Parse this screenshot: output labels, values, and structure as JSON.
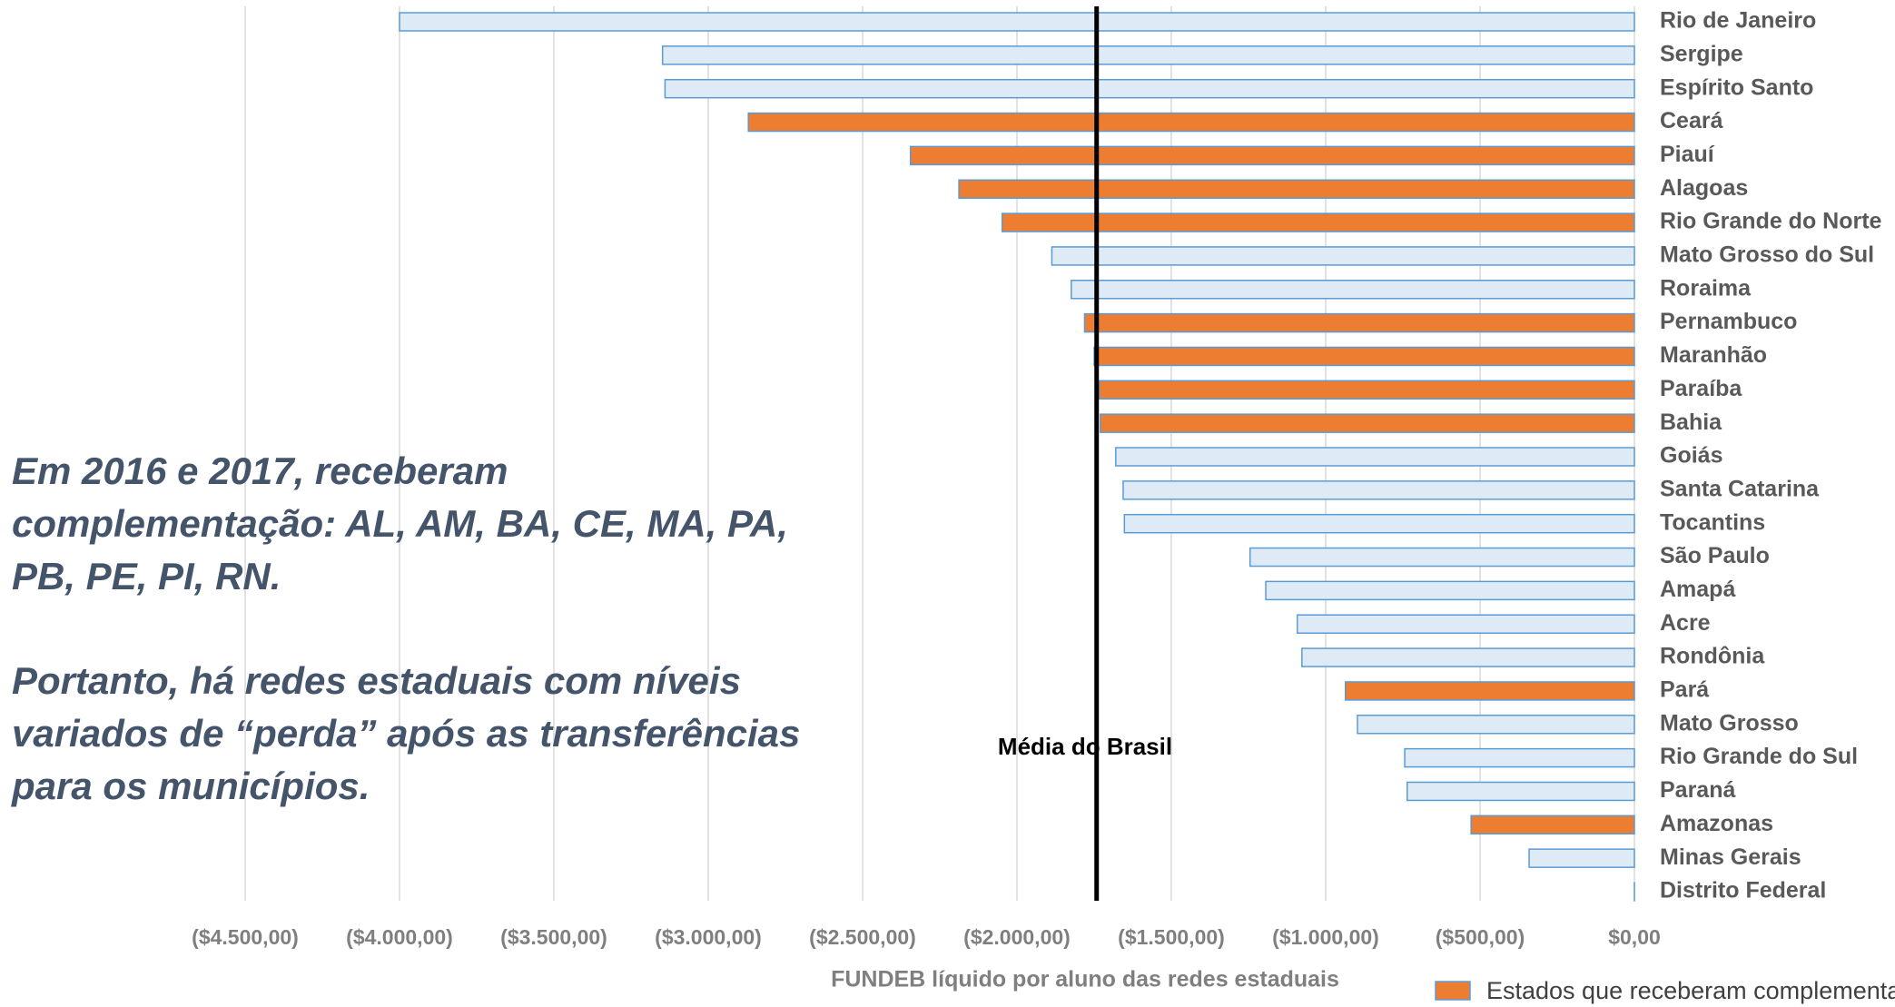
{
  "chart_data": {
    "type": "bar",
    "orientation": "horizontal",
    "x_label": "FUNDEB líquido por aluno das redes estaduais",
    "categories": [
      "Rio de Janeiro",
      "Sergipe",
      "Espírito Santo",
      "Ceará",
      "Piauí",
      "Alagoas",
      "Rio Grande do Norte",
      "Mato Grosso do Sul",
      "Roraima",
      "Pernambuco",
      "Maranhão",
      "Paraíba",
      "Bahia",
      "Goiás",
      "Santa Catarina",
      "Tocantins",
      "São Paulo",
      "Amapá",
      "Acre",
      "Rondônia",
      "Pará",
      "Mato Grosso",
      "Rio Grande do Sul",
      "Paraná",
      "Amazonas",
      "Minas Gerais",
      "Distrito Federal"
    ],
    "series": [
      {
        "name": "Estados que receberam complementação",
        "color": "#ed7d31",
        "border": "#5b9bd5",
        "values": [
          null,
          null,
          null,
          -2870,
          -2345,
          -2188,
          -2048,
          null,
          null,
          -1781,
          -1750,
          -1734,
          -1730,
          null,
          null,
          null,
          null,
          null,
          null,
          null,
          -936,
          null,
          null,
          null,
          -529,
          null,
          null
        ]
      },
      {
        "color": "#deebf7",
        "border": "#5b9bd5",
        "values": [
          -4000,
          -3148,
          -3140,
          null,
          null,
          null,
          null,
          -1887,
          -1824,
          null,
          null,
          null,
          null,
          -1680,
          -1656,
          -1652,
          -1245,
          -1194,
          -1092,
          -1077,
          null,
          -897,
          -744,
          -736,
          null,
          -341,
          0
        ]
      }
    ],
    "xlim": [
      -4500,
      0
    ],
    "xticks": [
      {
        "value": -4500,
        "label": "($4.500,00)"
      },
      {
        "value": -4000,
        "label": "($4.000,00)"
      },
      {
        "value": -3500,
        "label": "($3.500,00)"
      },
      {
        "value": -3000,
        "label": "($3.000,00)"
      },
      {
        "value": -2500,
        "label": "($2.500,00)"
      },
      {
        "value": -2000,
        "label": "($2.000,00)"
      },
      {
        "value": -1500,
        "label": "($1.500,00)"
      },
      {
        "value": -1000,
        "label": "($1.000,00)"
      },
      {
        "value": -500,
        "label": "($500,00)"
      },
      {
        "value": 0,
        "label": "$0,00"
      }
    ],
    "grid": true,
    "reference_line": {
      "label": "Média do Brasil",
      "value": -1742,
      "color": "#000000"
    },
    "annotation": [
      "Em 2016 e 2017, receberam",
      "complementação: AL, AM, BA, CE, MA, PA,",
      "PB, PE, PI, RN.",
      "Portanto, há redes estaduais com níveis",
      "variados de “perda” após as transferências",
      "para os municípios."
    ],
    "legend": "bottom-right"
  }
}
